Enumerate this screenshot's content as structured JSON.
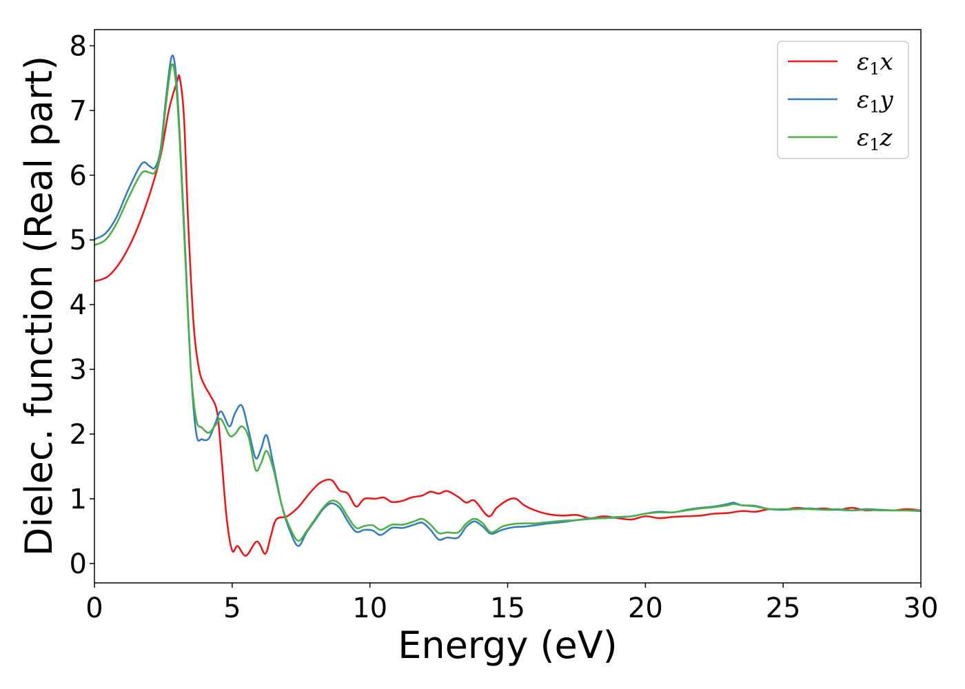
{
  "chart_data": {
    "type": "line",
    "xlabel": "Energy (eV)",
    "ylabel": "Dielec. function (Real part)",
    "xlim": [
      0,
      30
    ],
    "ylim": [
      -0.3,
      8.25
    ],
    "xticks": [
      0,
      5,
      10,
      15,
      20,
      25,
      30
    ],
    "yticks": [
      0,
      1,
      2,
      3,
      4,
      5,
      6,
      7,
      8
    ],
    "grid": false,
    "legend_position": "top-right",
    "series": [
      {
        "name": "ε1x",
        "name_base": "ε",
        "name_sub": "1",
        "name_suffix": "x",
        "color": "#e41a1c",
        "points": [
          [
            0,
            4.36
          ],
          [
            0.5,
            4.44
          ],
          [
            1.0,
            4.7
          ],
          [
            1.5,
            5.12
          ],
          [
            2.0,
            5.7
          ],
          [
            2.4,
            6.3
          ],
          [
            2.7,
            7.0
          ],
          [
            3.0,
            7.45
          ],
          [
            3.1,
            7.5
          ],
          [
            3.25,
            6.9
          ],
          [
            3.4,
            5.3
          ],
          [
            3.6,
            3.7
          ],
          [
            3.8,
            3.0
          ],
          [
            4.0,
            2.75
          ],
          [
            4.2,
            2.6
          ],
          [
            4.45,
            2.35
          ],
          [
            4.6,
            1.7
          ],
          [
            4.8,
            0.7
          ],
          [
            5.0,
            0.2
          ],
          [
            5.2,
            0.27
          ],
          [
            5.5,
            0.12
          ],
          [
            5.9,
            0.34
          ],
          [
            6.2,
            0.15
          ],
          [
            6.4,
            0.42
          ],
          [
            6.6,
            0.68
          ],
          [
            7.0,
            0.73
          ],
          [
            7.4,
            0.87
          ],
          [
            7.8,
            1.08
          ],
          [
            8.2,
            1.25
          ],
          [
            8.6,
            1.29
          ],
          [
            8.9,
            1.13
          ],
          [
            9.2,
            1.08
          ],
          [
            9.5,
            0.88
          ],
          [
            9.8,
            1.0
          ],
          [
            10.2,
            1.0
          ],
          [
            10.5,
            1.02
          ],
          [
            10.8,
            0.95
          ],
          [
            11.2,
            0.97
          ],
          [
            11.5,
            1.02
          ],
          [
            11.9,
            1.05
          ],
          [
            12.2,
            1.11
          ],
          [
            12.5,
            1.08
          ],
          [
            12.8,
            1.12
          ],
          [
            13.2,
            1.03
          ],
          [
            13.5,
            0.94
          ],
          [
            13.8,
            0.97
          ],
          [
            14.3,
            0.73
          ],
          [
            14.6,
            0.86
          ],
          [
            15.0,
            0.98
          ],
          [
            15.3,
            1.0
          ],
          [
            15.6,
            0.9
          ],
          [
            16.0,
            0.82
          ],
          [
            16.5,
            0.76
          ],
          [
            17.0,
            0.74
          ],
          [
            17.5,
            0.75
          ],
          [
            18.0,
            0.7
          ],
          [
            18.5,
            0.73
          ],
          [
            19.0,
            0.7
          ],
          [
            19.5,
            0.68
          ],
          [
            20.0,
            0.73
          ],
          [
            20.5,
            0.7
          ],
          [
            21.0,
            0.72
          ],
          [
            21.5,
            0.73
          ],
          [
            22.0,
            0.74
          ],
          [
            22.5,
            0.77
          ],
          [
            23.0,
            0.78
          ],
          [
            23.5,
            0.81
          ],
          [
            24.0,
            0.8
          ],
          [
            24.5,
            0.84
          ],
          [
            25.0,
            0.83
          ],
          [
            25.5,
            0.86
          ],
          [
            26.0,
            0.84
          ],
          [
            26.5,
            0.85
          ],
          [
            27.0,
            0.83
          ],
          [
            27.5,
            0.86
          ],
          [
            28.0,
            0.82
          ],
          [
            28.5,
            0.83
          ],
          [
            29.0,
            0.82
          ],
          [
            29.5,
            0.84
          ],
          [
            30.0,
            0.82
          ]
        ]
      },
      {
        "name": "ε1y",
        "name_base": "ε",
        "name_sub": "1",
        "name_suffix": "y",
        "color": "#377eb8",
        "points": [
          [
            0,
            5.01
          ],
          [
            0.4,
            5.1
          ],
          [
            0.8,
            5.35
          ],
          [
            1.2,
            5.75
          ],
          [
            1.6,
            6.1
          ],
          [
            1.8,
            6.2
          ],
          [
            2.0,
            6.14
          ],
          [
            2.2,
            6.12
          ],
          [
            2.4,
            6.4
          ],
          [
            2.6,
            7.2
          ],
          [
            2.8,
            7.83
          ],
          [
            2.95,
            7.6
          ],
          [
            3.1,
            6.6
          ],
          [
            3.3,
            4.8
          ],
          [
            3.5,
            3.0
          ],
          [
            3.7,
            2.0
          ],
          [
            3.9,
            1.92
          ],
          [
            4.15,
            1.93
          ],
          [
            4.4,
            2.18
          ],
          [
            4.6,
            2.35
          ],
          [
            4.9,
            2.12
          ],
          [
            5.1,
            2.32
          ],
          [
            5.35,
            2.44
          ],
          [
            5.6,
            2.05
          ],
          [
            5.85,
            1.63
          ],
          [
            6.05,
            1.77
          ],
          [
            6.25,
            1.98
          ],
          [
            6.5,
            1.52
          ],
          [
            6.8,
            0.9
          ],
          [
            7.1,
            0.5
          ],
          [
            7.4,
            0.27
          ],
          [
            7.7,
            0.48
          ],
          [
            8.0,
            0.66
          ],
          [
            8.3,
            0.84
          ],
          [
            8.6,
            0.93
          ],
          [
            8.9,
            0.86
          ],
          [
            9.2,
            0.65
          ],
          [
            9.5,
            0.49
          ],
          [
            9.8,
            0.52
          ],
          [
            10.1,
            0.51
          ],
          [
            10.4,
            0.44
          ],
          [
            10.8,
            0.55
          ],
          [
            11.2,
            0.55
          ],
          [
            11.6,
            0.6
          ],
          [
            11.9,
            0.63
          ],
          [
            12.2,
            0.52
          ],
          [
            12.5,
            0.37
          ],
          [
            12.8,
            0.4
          ],
          [
            13.2,
            0.4
          ],
          [
            13.5,
            0.57
          ],
          [
            13.8,
            0.65
          ],
          [
            14.1,
            0.57
          ],
          [
            14.4,
            0.46
          ],
          [
            14.8,
            0.52
          ],
          [
            15.2,
            0.56
          ],
          [
            15.6,
            0.57
          ],
          [
            16.0,
            0.59
          ],
          [
            16.5,
            0.62
          ],
          [
            17.0,
            0.64
          ],
          [
            17.5,
            0.67
          ],
          [
            18.0,
            0.69
          ],
          [
            18.5,
            0.7
          ],
          [
            19.0,
            0.71
          ],
          [
            19.5,
            0.73
          ],
          [
            20.0,
            0.77
          ],
          [
            20.5,
            0.8
          ],
          [
            21.0,
            0.79
          ],
          [
            21.5,
            0.83
          ],
          [
            22.0,
            0.86
          ],
          [
            22.5,
            0.88
          ],
          [
            23.0,
            0.92
          ],
          [
            23.2,
            0.94
          ],
          [
            23.5,
            0.9
          ],
          [
            24.0,
            0.89
          ],
          [
            24.5,
            0.84
          ],
          [
            25.0,
            0.83
          ],
          [
            25.5,
            0.84
          ],
          [
            26.0,
            0.85
          ],
          [
            26.5,
            0.83
          ],
          [
            27.0,
            0.83
          ],
          [
            27.5,
            0.82
          ],
          [
            28.0,
            0.84
          ],
          [
            28.5,
            0.83
          ],
          [
            29.0,
            0.82
          ],
          [
            29.5,
            0.82
          ],
          [
            30.0,
            0.81
          ]
        ]
      },
      {
        "name": "ε1z",
        "name_base": "ε",
        "name_sub": "1",
        "name_suffix": "z",
        "color": "#4daf4a",
        "points": [
          [
            0,
            4.92
          ],
          [
            0.4,
            5.0
          ],
          [
            0.8,
            5.25
          ],
          [
            1.2,
            5.62
          ],
          [
            1.6,
            5.96
          ],
          [
            1.8,
            6.06
          ],
          [
            2.0,
            6.04
          ],
          [
            2.2,
            6.05
          ],
          [
            2.4,
            6.35
          ],
          [
            2.6,
            7.1
          ],
          [
            2.8,
            7.7
          ],
          [
            2.95,
            7.45
          ],
          [
            3.1,
            6.5
          ],
          [
            3.3,
            4.7
          ],
          [
            3.5,
            3.0
          ],
          [
            3.7,
            2.22
          ],
          [
            3.9,
            2.1
          ],
          [
            4.15,
            2.02
          ],
          [
            4.4,
            2.14
          ],
          [
            4.6,
            2.23
          ],
          [
            4.9,
            1.98
          ],
          [
            5.1,
            2.0
          ],
          [
            5.35,
            2.12
          ],
          [
            5.6,
            1.95
          ],
          [
            5.85,
            1.45
          ],
          [
            6.05,
            1.55
          ],
          [
            6.25,
            1.74
          ],
          [
            6.5,
            1.45
          ],
          [
            6.8,
            0.9
          ],
          [
            7.1,
            0.55
          ],
          [
            7.4,
            0.35
          ],
          [
            7.7,
            0.5
          ],
          [
            8.0,
            0.68
          ],
          [
            8.3,
            0.86
          ],
          [
            8.6,
            0.97
          ],
          [
            8.9,
            0.92
          ],
          [
            9.2,
            0.72
          ],
          [
            9.5,
            0.55
          ],
          [
            9.8,
            0.58
          ],
          [
            10.1,
            0.59
          ],
          [
            10.4,
            0.52
          ],
          [
            10.8,
            0.6
          ],
          [
            11.2,
            0.6
          ],
          [
            11.6,
            0.65
          ],
          [
            11.9,
            0.69
          ],
          [
            12.2,
            0.6
          ],
          [
            12.5,
            0.47
          ],
          [
            12.8,
            0.48
          ],
          [
            13.2,
            0.48
          ],
          [
            13.5,
            0.62
          ],
          [
            13.8,
            0.69
          ],
          [
            14.1,
            0.62
          ],
          [
            14.4,
            0.48
          ],
          [
            14.8,
            0.57
          ],
          [
            15.2,
            0.61
          ],
          [
            15.6,
            0.62
          ],
          [
            16.0,
            0.62
          ],
          [
            16.5,
            0.64
          ],
          [
            17.0,
            0.66
          ],
          [
            17.5,
            0.67
          ],
          [
            18.0,
            0.7
          ],
          [
            18.5,
            0.7
          ],
          [
            19.0,
            0.72
          ],
          [
            19.5,
            0.73
          ],
          [
            20.0,
            0.77
          ],
          [
            20.5,
            0.79
          ],
          [
            21.0,
            0.79
          ],
          [
            21.5,
            0.82
          ],
          [
            22.0,
            0.85
          ],
          [
            22.5,
            0.87
          ],
          [
            23.0,
            0.9
          ],
          [
            23.2,
            0.92
          ],
          [
            23.5,
            0.9
          ],
          [
            24.0,
            0.88
          ],
          [
            24.5,
            0.84
          ],
          [
            25.0,
            0.84
          ],
          [
            25.5,
            0.84
          ],
          [
            26.0,
            0.84
          ],
          [
            26.5,
            0.83
          ],
          [
            27.0,
            0.84
          ],
          [
            27.5,
            0.82
          ],
          [
            28.0,
            0.83
          ],
          [
            28.5,
            0.82
          ],
          [
            29.0,
            0.82
          ],
          [
            29.5,
            0.82
          ],
          [
            30.0,
            0.82
          ]
        ]
      }
    ]
  }
}
